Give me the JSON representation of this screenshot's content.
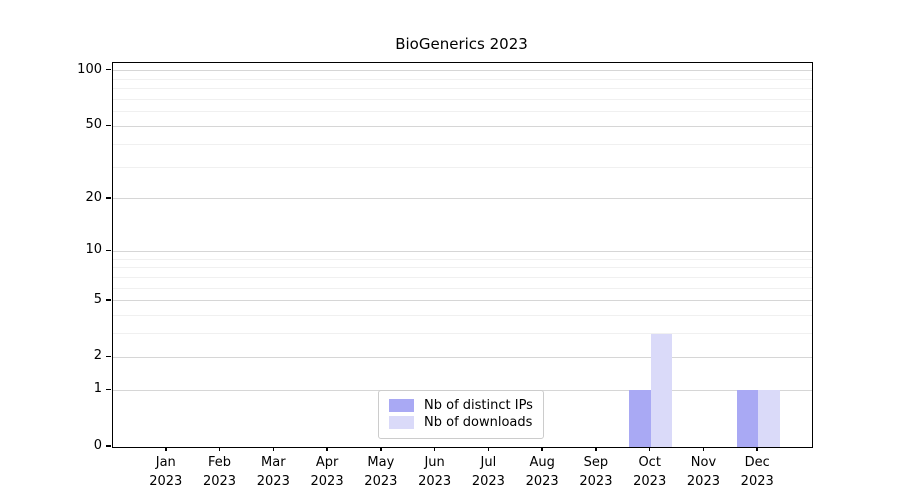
{
  "chart_data": {
    "type": "bar",
    "title": "BioGenerics 2023",
    "categories": [
      "Jan",
      "Feb",
      "Mar",
      "Apr",
      "May",
      "Jun",
      "Jul",
      "Aug",
      "Sep",
      "Oct",
      "Nov",
      "Dec"
    ],
    "tick_year": "2023",
    "series": [
      {
        "name": "Nb of distinct IPs",
        "color": "#a9a9f4",
        "values": [
          0,
          0,
          0,
          0,
          0,
          0,
          0,
          0,
          0,
          1,
          0,
          1
        ]
      },
      {
        "name": "Nb of downloads",
        "color": "#dadaf9",
        "values": [
          0,
          0,
          0,
          0,
          0,
          0,
          0,
          0,
          0,
          3,
          0,
          1
        ]
      }
    ],
    "xlabel": "",
    "ylabel": "",
    "yscale": "log10(1+y)",
    "ylim": [
      0,
      110
    ],
    "yticks": [
      0,
      1,
      2,
      5,
      10,
      20,
      50,
      100
    ],
    "minor_yticks": [
      3,
      4,
      6,
      7,
      8,
      9,
      30,
      40,
      60,
      70,
      80,
      90
    ],
    "grid": true,
    "legend_position": "lower center",
    "colors": {
      "grid_major": "#d6d6d6",
      "grid_minor": "#f0f0f0",
      "spine": "#000000",
      "background": "#ffffff"
    }
  }
}
